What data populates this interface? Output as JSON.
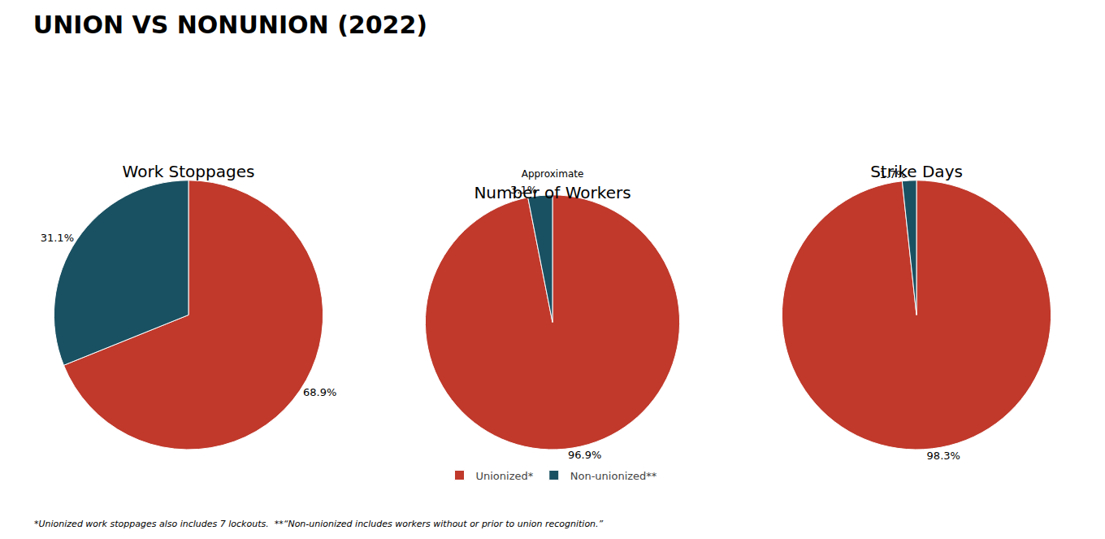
{
  "title": "UNION VS NONUNION (2022)",
  "legend": "bottom",
  "annotations": [
    "*Unionized work stoppages also includes 7 lockouts.  **“Non-unionized includes workers without or prior to union recognition.”"
  ],
  "chart_data": [
    {
      "type": "pie",
      "title": "Work Stoppages",
      "categories": [
        "Unionized*",
        "Non-unionized**"
      ],
      "values": [
        68.9,
        31.1
      ],
      "value_labels": [
        "68.9%",
        "31.1%"
      ],
      "colors": [
        "#C0392B",
        "#1A5162"
      ],
      "data_labels": true
    },
    {
      "type": "pie",
      "title": "Number of Workers",
      "subtitle": "Approximate",
      "categories": [
        "Unionized*",
        "Non-unionized**"
      ],
      "values": [
        96.9,
        3.1
      ],
      "value_labels": [
        "96.9%",
        "3.1%"
      ],
      "colors": [
        "#C0392B",
        "#1A5162"
      ],
      "data_labels": true
    },
    {
      "type": "pie",
      "title": "Strike Days",
      "categories": [
        "Unionized*",
        "Non-unionized**"
      ],
      "values": [
        98.3,
        1.7
      ],
      "value_labels": [
        "98.3%",
        "1.7%"
      ],
      "colors": [
        "#C0392B",
        "#1A5162"
      ],
      "data_labels": true
    }
  ]
}
